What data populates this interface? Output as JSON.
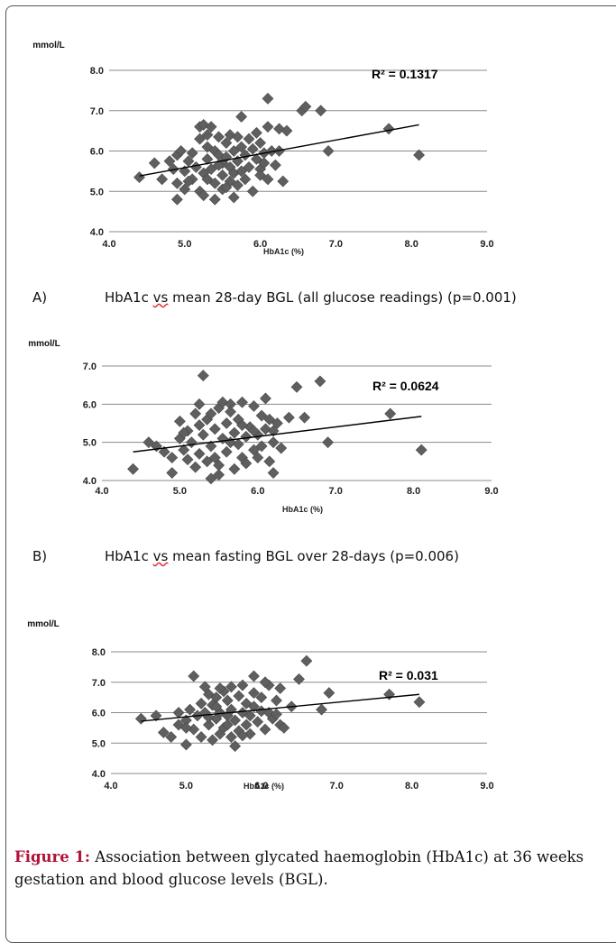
{
  "chart_data": [
    {
      "type": "scatter",
      "panel_label": "A)",
      "caption_pre": "HbA1c",
      "caption_vs": "vs",
      "caption_post": " mean 28-day BGL (all glucose readings) (p=0.001)",
      "ylabel": "mmol/L",
      "xlabel": "HbA1c (%)",
      "xlim": [
        4.0,
        9.0
      ],
      "ylim": [
        4.0,
        8.0
      ],
      "xticks": [
        "4.0",
        "5.0",
        "6.0",
        "7.0",
        "8.0",
        "9.0"
      ],
      "yticks": [
        "4.0",
        "5.0",
        "6.0",
        "7.0",
        "8.0"
      ],
      "r2_label": "R² = 0.1317",
      "trendline": {
        "x": [
          4.4,
          8.1
        ],
        "y": [
          5.38,
          6.65
        ]
      },
      "grid": true,
      "marker_color": "#5f5f5f",
      "points": [
        [
          4.4,
          5.35
        ],
        [
          4.6,
          5.7
        ],
        [
          4.7,
          5.3
        ],
        [
          4.8,
          5.75
        ],
        [
          4.85,
          5.55
        ],
        [
          4.9,
          5.9
        ],
        [
          4.9,
          5.2
        ],
        [
          4.9,
          4.8
        ],
        [
          4.95,
          6.0
        ],
        [
          5.0,
          5.5
        ],
        [
          5.0,
          5.05
        ],
        [
          5.05,
          5.75
        ],
        [
          5.1,
          5.3
        ],
        [
          5.1,
          5.95
        ],
        [
          5.15,
          5.6
        ],
        [
          5.2,
          6.3
        ],
        [
          5.2,
          5.0
        ],
        [
          5.2,
          6.6
        ],
        [
          5.25,
          5.45
        ],
        [
          5.25,
          6.65
        ],
        [
          5.25,
          4.9
        ],
        [
          5.3,
          6.1
        ],
        [
          5.3,
          5.8
        ],
        [
          5.3,
          5.3
        ],
        [
          5.35,
          6.6
        ],
        [
          5.35,
          5.55
        ],
        [
          5.4,
          6.0
        ],
        [
          5.4,
          5.2
        ],
        [
          5.4,
          4.8
        ],
        [
          5.45,
          5.9
        ],
        [
          5.45,
          6.35
        ],
        [
          5.5,
          5.7
        ],
        [
          5.5,
          5.4
        ],
        [
          5.5,
          5.05
        ],
        [
          5.55,
          6.2
        ],
        [
          5.55,
          5.85
        ],
        [
          5.6,
          6.4
        ],
        [
          5.6,
          5.6
        ],
        [
          5.6,
          5.25
        ],
        [
          5.65,
          6.0
        ],
        [
          5.65,
          5.45
        ],
        [
          5.65,
          4.85
        ],
        [
          5.7,
          6.35
        ],
        [
          5.7,
          5.75
        ],
        [
          5.75,
          5.5
        ],
        [
          5.75,
          6.1
        ],
        [
          5.8,
          5.9
        ],
        [
          5.8,
          5.3
        ],
        [
          5.85,
          6.3
        ],
        [
          5.85,
          5.6
        ],
        [
          5.9,
          6.05
        ],
        [
          5.9,
          5.0
        ],
        [
          5.95,
          5.8
        ],
        [
          6.0,
          6.2
        ],
        [
          6.0,
          5.55
        ],
        [
          6.0,
          5.4
        ],
        [
          6.05,
          5.95
        ],
        [
          6.1,
          6.6
        ],
        [
          6.1,
          5.3
        ],
        [
          6.1,
          7.3
        ],
        [
          6.15,
          6.0
        ],
        [
          6.2,
          5.65
        ],
        [
          6.25,
          6.55
        ],
        [
          6.25,
          6.0
        ],
        [
          6.3,
          5.25
        ],
        [
          6.35,
          6.5
        ],
        [
          5.75,
          6.85
        ],
        [
          5.3,
          6.4
        ],
        [
          5.45,
          5.65
        ],
        [
          5.7,
          5.15
        ],
        [
          6.55,
          7.0
        ],
        [
          6.6,
          7.1
        ],
        [
          6.8,
          7.0
        ],
        [
          6.9,
          6.0
        ],
        [
          7.7,
          6.55
        ],
        [
          8.1,
          5.9
        ],
        [
          5.05,
          5.25
        ],
        [
          5.55,
          5.1
        ],
        [
          5.95,
          6.45
        ],
        [
          6.05,
          5.7
        ]
      ]
    },
    {
      "type": "scatter",
      "panel_label": "B)",
      "caption_pre": "HbA1c",
      "caption_vs": "vs",
      "caption_post": " mean fasting BGL over 28-days (p=0.006)",
      "ylabel": "mmol/L",
      "xlabel": "HbA1c (%)",
      "xlim": [
        4.0,
        9.0
      ],
      "ylim": [
        4.0,
        7.0
      ],
      "xticks": [
        "4.0",
        "5.0",
        "6.0",
        "7.0",
        "8.0",
        "9.0"
      ],
      "yticks": [
        "4.0",
        "5.0",
        "6.0",
        "7.0"
      ],
      "r2_label": "R² = 0.0624",
      "trendline": {
        "x": [
          4.4,
          8.1
        ],
        "y": [
          4.75,
          5.68
        ]
      },
      "grid": true,
      "marker_color": "#5f5f5f",
      "points": [
        [
          4.4,
          4.3
        ],
        [
          4.6,
          5.0
        ],
        [
          4.7,
          4.9
        ],
        [
          4.8,
          4.75
        ],
        [
          4.9,
          4.6
        ],
        [
          4.9,
          4.2
        ],
        [
          5.0,
          5.1
        ],
        [
          5.0,
          5.55
        ],
        [
          5.05,
          4.8
        ],
        [
          5.1,
          5.3
        ],
        [
          5.1,
          4.55
        ],
        [
          5.15,
          5.0
        ],
        [
          5.2,
          5.75
        ],
        [
          5.2,
          4.35
        ],
        [
          5.25,
          6.0
        ],
        [
          5.25,
          4.7
        ],
        [
          5.3,
          5.2
        ],
        [
          5.3,
          6.75
        ],
        [
          5.35,
          4.5
        ],
        [
          5.35,
          5.6
        ],
        [
          5.4,
          4.9
        ],
        [
          5.4,
          4.05
        ],
        [
          5.45,
          5.35
        ],
        [
          5.45,
          4.6
        ],
        [
          5.5,
          5.9
        ],
        [
          5.5,
          4.4
        ],
        [
          5.55,
          5.1
        ],
        [
          5.55,
          6.05
        ],
        [
          5.6,
          4.75
        ],
        [
          5.6,
          5.5
        ],
        [
          5.65,
          5.0
        ],
        [
          5.65,
          6.0
        ],
        [
          5.7,
          4.3
        ],
        [
          5.7,
          5.25
        ],
        [
          5.75,
          4.95
        ],
        [
          5.75,
          5.6
        ],
        [
          5.8,
          4.6
        ],
        [
          5.8,
          6.05
        ],
        [
          5.85,
          5.15
        ],
        [
          5.85,
          4.45
        ],
        [
          5.9,
          5.4
        ],
        [
          5.95,
          4.8
        ],
        [
          5.95,
          5.95
        ],
        [
          6.0,
          5.2
        ],
        [
          6.0,
          4.6
        ],
        [
          6.05,
          5.7
        ],
        [
          6.05,
          4.9
        ],
        [
          6.1,
          5.35
        ],
        [
          6.1,
          6.15
        ],
        [
          6.15,
          4.5
        ],
        [
          6.15,
          5.6
        ],
        [
          6.2,
          4.2
        ],
        [
          6.2,
          5.0
        ],
        [
          6.25,
          5.5
        ],
        [
          6.3,
          4.85
        ],
        [
          6.4,
          5.65
        ],
        [
          6.5,
          6.45
        ],
        [
          6.6,
          5.65
        ],
        [
          6.8,
          6.6
        ],
        [
          6.9,
          5.0
        ],
        [
          7.7,
          5.75
        ],
        [
          8.1,
          4.8
        ],
        [
          5.5,
          4.15
        ],
        [
          5.25,
          5.45
        ],
        [
          5.65,
          5.8
        ],
        [
          5.95,
          5.3
        ],
        [
          5.05,
          5.25
        ],
        [
          5.4,
          5.75
        ],
        [
          5.8,
          5.45
        ],
        [
          6.2,
          5.3
        ]
      ]
    },
    {
      "type": "scatter",
      "ylabel": "mmol/L",
      "xlabel": "HbA1c (%)",
      "xlim": [
        4.0,
        9.0
      ],
      "ylim": [
        4.0,
        8.0
      ],
      "xticks": [
        "4.0",
        "5.0",
        "6.0",
        "7.0",
        "8.0",
        "9.0"
      ],
      "yticks": [
        "4.0",
        "5.0",
        "6.0",
        "7.0",
        "8.0"
      ],
      "r2_label": "R² = 0.031",
      "trendline": {
        "x": [
          4.4,
          8.1
        ],
        "y": [
          5.72,
          6.6
        ]
      },
      "grid": true,
      "marker_color": "#5f5f5f",
      "points": [
        [
          4.4,
          5.8
        ],
        [
          4.6,
          5.9
        ],
        [
          4.7,
          5.35
        ],
        [
          4.8,
          5.2
        ],
        [
          4.9,
          5.6
        ],
        [
          4.9,
          6.0
        ],
        [
          5.0,
          4.95
        ],
        [
          5.0,
          5.75
        ],
        [
          5.05,
          6.1
        ],
        [
          5.1,
          5.45
        ],
        [
          5.1,
          7.2
        ],
        [
          5.15,
          5.9
        ],
        [
          5.2,
          6.3
        ],
        [
          5.2,
          5.2
        ],
        [
          5.25,
          6.0
        ],
        [
          5.25,
          6.85
        ],
        [
          5.3,
          5.6
        ],
        [
          5.3,
          6.6
        ],
        [
          5.35,
          5.1
        ],
        [
          5.35,
          6.25
        ],
        [
          5.4,
          5.8
        ],
        [
          5.4,
          6.5
        ],
        [
          5.45,
          5.3
        ],
        [
          5.45,
          6.0
        ],
        [
          5.5,
          6.7
        ],
        [
          5.5,
          5.5
        ],
        [
          5.55,
          5.9
        ],
        [
          5.55,
          6.4
        ],
        [
          5.6,
          5.2
        ],
        [
          5.6,
          6.1
        ],
        [
          5.65,
          5.75
        ],
        [
          5.65,
          4.9
        ],
        [
          5.7,
          6.55
        ],
        [
          5.7,
          5.4
        ],
        [
          5.75,
          6.0
        ],
        [
          5.75,
          6.9
        ],
        [
          5.8,
          5.6
        ],
        [
          5.8,
          6.3
        ],
        [
          5.85,
          5.9
        ],
        [
          5.85,
          5.3
        ],
        [
          5.9,
          7.2
        ],
        [
          5.9,
          6.2
        ],
        [
          5.95,
          5.7
        ],
        [
          6.0,
          6.5
        ],
        [
          6.0,
          6.05
        ],
        [
          6.05,
          5.45
        ],
        [
          6.1,
          6.9
        ],
        [
          6.1,
          6.0
        ],
        [
          6.15,
          5.8
        ],
        [
          6.2,
          6.4
        ],
        [
          6.25,
          5.6
        ],
        [
          6.25,
          6.8
        ],
        [
          6.3,
          5.5
        ],
        [
          6.4,
          6.2
        ],
        [
          6.5,
          7.1
        ],
        [
          6.6,
          7.7
        ],
        [
          6.8,
          6.1
        ],
        [
          6.9,
          6.65
        ],
        [
          7.7,
          6.6
        ],
        [
          8.1,
          6.35
        ],
        [
          5.45,
          6.8
        ],
        [
          5.6,
          6.85
        ],
        [
          5.3,
          5.85
        ],
        [
          5.9,
          6.65
        ],
        [
          6.05,
          7.0
        ],
        [
          5.0,
          5.5
        ],
        [
          5.55,
          5.6
        ],
        [
          5.75,
          5.25
        ],
        [
          6.2,
          5.95
        ],
        [
          5.4,
          6.2
        ]
      ]
    }
  ],
  "figure_caption": {
    "label": "Figure 1:",
    "text": " Association between glycated haemoglobin (HbA1c) at 36 weeks gestation and blood glucose levels (BGL)."
  }
}
